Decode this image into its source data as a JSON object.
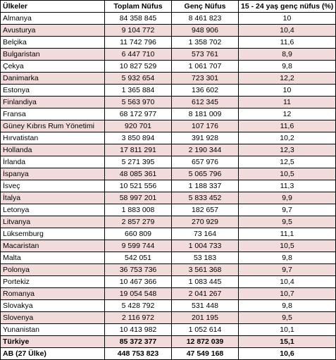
{
  "table": {
    "headers": [
      "Ülkeler",
      "Toplam Nüfus",
      "Genç Nüfus",
      "15 - 24 yaş genç nüfus (%)"
    ],
    "rows": [
      {
        "country": "Almanya",
        "total": "84 358 845",
        "youth": "8 461 823",
        "share": "10"
      },
      {
        "country": "Avusturya",
        "total": "9 104 772",
        "youth": "948 906",
        "share": "10,4"
      },
      {
        "country": "Belçika",
        "total": "11 742 796",
        "youth": "1 358 702",
        "share": "11,6"
      },
      {
        "country": "Bulgaristan",
        "total": "6 447 710",
        "youth": "573 761",
        "share": "8,9"
      },
      {
        "country": "Çekya",
        "total": "10 827 529",
        "youth": "1 061 707",
        "share": "9,8"
      },
      {
        "country": "Danimarka",
        "total": "5 932 654",
        "youth": "723 301",
        "share": "12,2"
      },
      {
        "country": "Estonya",
        "total": "1 365 884",
        "youth": "136 602",
        "share": "10"
      },
      {
        "country": "Finlandiya",
        "total": "5 563 970",
        "youth": "612 345",
        "share": "11"
      },
      {
        "country": "Fransa",
        "total": "68 172 977",
        "youth": "8 181 009",
        "share": "12"
      },
      {
        "country": "Güney Kıbrıs Rum Yönetimi",
        "total": "920 701",
        "youth": "107 176",
        "share": "11,6"
      },
      {
        "country": "Hırvatistan",
        "total": "3 850 894",
        "youth": "391 928",
        "share": "10,2"
      },
      {
        "country": "Hollanda",
        "total": "17 811 291",
        "youth": "2 190 344",
        "share": "12,3"
      },
      {
        "country": "İrlanda",
        "total": "5 271 395",
        "youth": "657 976",
        "share": "12,5"
      },
      {
        "country": "İspanya",
        "total": "48 085 361",
        "youth": "5 065 796",
        "share": "10,5"
      },
      {
        "country": "İsveç",
        "total": "10 521 556",
        "youth": "1 188 337",
        "share": "11,3"
      },
      {
        "country": "İtalya",
        "total": "58 997 201",
        "youth": "5 833 452",
        "share": "9,9"
      },
      {
        "country": "Letonya",
        "total": "1 883 008",
        "youth": "182 657",
        "share": "9,7"
      },
      {
        "country": "Litvanya",
        "total": "2 857 279",
        "youth": "270 929",
        "share": "9,5"
      },
      {
        "country": "Lüksemburg",
        "total": "660 809",
        "youth": "73 164",
        "share": "11,1"
      },
      {
        "country": "Macaristan",
        "total": "9 599 744",
        "youth": "1 004 733",
        "share": "10,5"
      },
      {
        "country": "Malta",
        "total": "542 051",
        "youth": "53 183",
        "share": "9,8"
      },
      {
        "country": "Polonya",
        "total": "36 753 736",
        "youth": "3 561 368",
        "share": "9,7"
      },
      {
        "country": "Portekiz",
        "total": "10 467 366",
        "youth": "1 083 445",
        "share": "10,4"
      },
      {
        "country": "Romanya",
        "total": "19 054 548",
        "youth": "2 041 267",
        "share": "10,7"
      },
      {
        "country": "Slovakya",
        "total": "5 428 792",
        "youth": "531 448",
        "share": "9,8"
      },
      {
        "country": "Slovenya",
        "total": "2 116 972",
        "youth": "201 195",
        "share": "9,5"
      },
      {
        "country": "Yunanistan",
        "total": "10 413 982",
        "youth": "1 052 614",
        "share": "10,1"
      },
      {
        "country": "Türkiye",
        "total": "85 372 377",
        "youth": "12 872 039",
        "share": "15,1"
      },
      {
        "country": "AB (27 Ülke)",
        "total": "448 753 823",
        "youth": "47 549 168",
        "share": "10,6"
      }
    ]
  },
  "colors": {
    "alt_row": "#f2dcdb",
    "row": "#ffffff",
    "border": "#000000"
  }
}
